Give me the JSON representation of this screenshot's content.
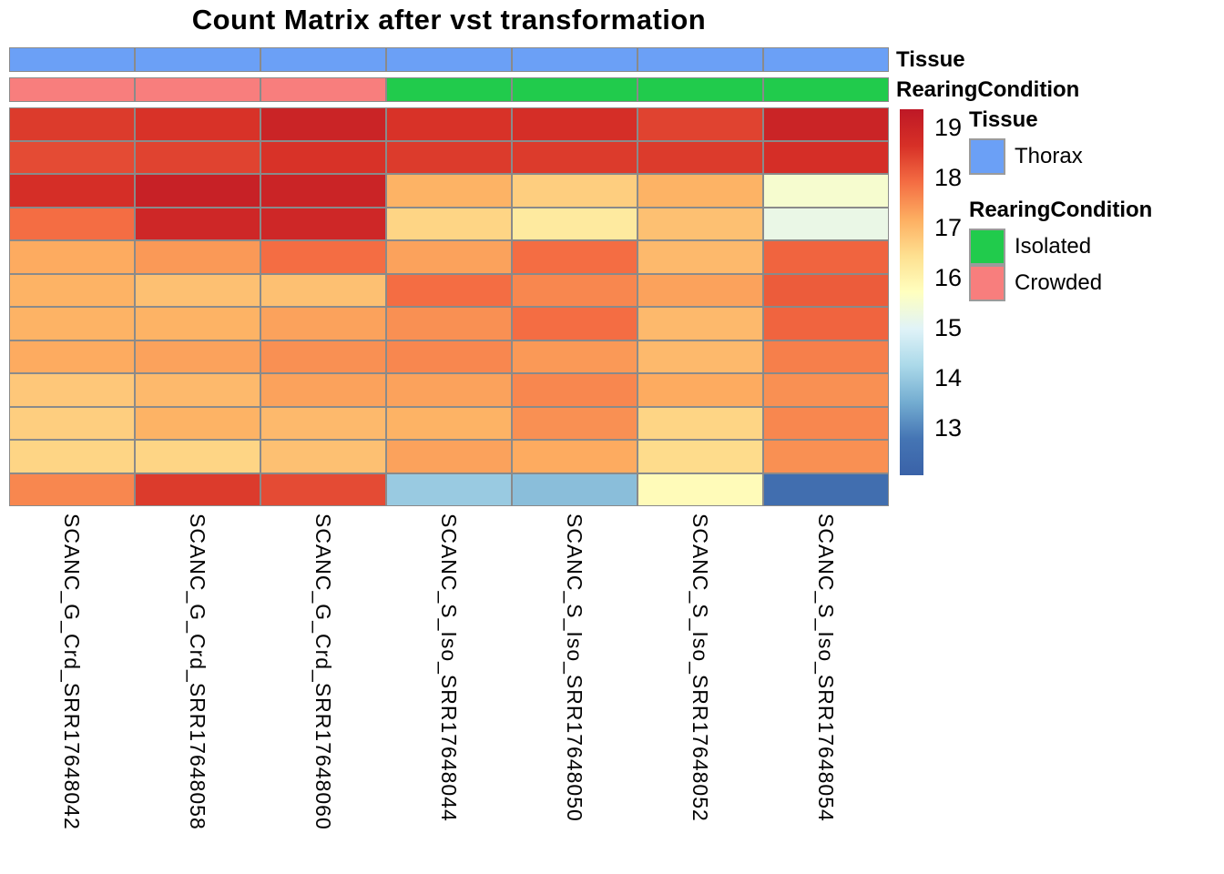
{
  "chart_data": {
    "type": "heatmap",
    "title": "Count Matrix after vst transformation",
    "columns": [
      "SCANC_G_Crd_SRR17648042",
      "SCANC_G_Crd_SRR17648058",
      "SCANC_G_Crd_SRR17648060",
      "SCANC_S_Iso_SRR17648044",
      "SCANC_S_Iso_SRR17648050",
      "SCANC_S_Iso_SRR17648052",
      "SCANC_S_Iso_SRR17648054"
    ],
    "row_names_shown": false,
    "values": [
      [
        18.5,
        18.6,
        19.0,
        18.6,
        18.7,
        18.4,
        19.0
      ],
      [
        18.3,
        18.4,
        18.6,
        18.5,
        18.5,
        18.5,
        18.7
      ],
      [
        18.7,
        19.1,
        19.0,
        17.1,
        16.7,
        17.1,
        15.5
      ],
      [
        17.9,
        18.9,
        18.9,
        16.6,
        16.2,
        16.9,
        15.2
      ],
      [
        17.2,
        17.4,
        17.9,
        17.3,
        17.9,
        17.0,
        18.0
      ],
      [
        17.1,
        16.9,
        16.9,
        17.9,
        17.6,
        17.3,
        18.1
      ],
      [
        17.1,
        17.1,
        17.3,
        17.5,
        17.9,
        17.0,
        18.0
      ],
      [
        17.2,
        17.3,
        17.5,
        17.6,
        17.4,
        17.0,
        17.7
      ],
      [
        16.8,
        17.0,
        17.3,
        17.3,
        17.6,
        17.2,
        17.5
      ],
      [
        16.7,
        17.1,
        17.0,
        17.1,
        17.5,
        16.6,
        17.6
      ],
      [
        16.6,
        16.6,
        16.9,
        17.3,
        17.2,
        16.5,
        17.5
      ],
      [
        17.6,
        18.5,
        18.3,
        14.0,
        13.8,
        15.8,
        12.5
      ]
    ],
    "color_scale": {
      "palette_name": "RdYlBu (reversed, low=blue high=red)",
      "vmin": 12.05,
      "vmax": 19.36,
      "ticks": [
        19,
        18,
        17,
        16,
        15,
        14,
        13
      ],
      "palette_low_to_high": [
        "#3A62A8",
        "#4575B4",
        "#74ADD1",
        "#ABD9E9",
        "#E0F3F8",
        "#FFFFBF",
        "#FEE090",
        "#FDAE61",
        "#F46D43",
        "#D73027",
        "#BE1826"
      ]
    },
    "column_annotations": {
      "Tissue": [
        "Thorax",
        "Thorax",
        "Thorax",
        "Thorax",
        "Thorax",
        "Thorax",
        "Thorax"
      ],
      "RearingCondition": [
        "Crowded",
        "Crowded",
        "Crowded",
        "Isolated",
        "Isolated",
        "Isolated",
        "Isolated"
      ]
    },
    "grid": true,
    "legend_position": "right"
  },
  "annotation_rows": [
    {
      "name": "Tissue"
    },
    {
      "name": "RearingCondition"
    }
  ],
  "annotation_colors": {
    "Thorax": "#6BA0F6",
    "Isolated": "#21CB4C",
    "Crowded": "#F87E7D"
  },
  "legend": {
    "colorbar_ticks": [
      19,
      18,
      17,
      16,
      15,
      14,
      13
    ],
    "groups": [
      {
        "header": "Tissue",
        "items": [
          {
            "label": "Thorax",
            "color": "#6BA0F6"
          }
        ]
      },
      {
        "header": "RearingCondition",
        "items": [
          {
            "label": "Isolated",
            "color": "#21CB4C"
          },
          {
            "label": "Crowded",
            "color": "#F87E7D"
          }
        ]
      }
    ]
  }
}
